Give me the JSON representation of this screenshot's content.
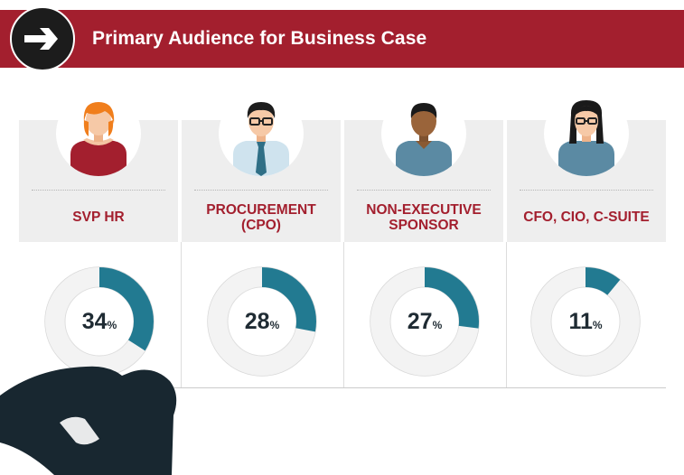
{
  "header": {
    "title": "Primary Audience for Business Case",
    "icon": "arrow-right-icon"
  },
  "columns": [
    {
      "label": "SVP HR",
      "avatar": "woman-red-hair-icon"
    },
    {
      "label": "PROCUREMENT\n(CPO)",
      "avatar": "man-glasses-tie-icon"
    },
    {
      "label": "NON-EXECUTIVE\nSPONSOR",
      "avatar": "man-dark-skin-icon"
    },
    {
      "label": "CFO, CIO, C-SUITE",
      "avatar": "woman-glasses-icon"
    }
  ],
  "colors": {
    "banner": "#a31f2e",
    "accent": "#227a91",
    "ring": "#f3f3f3",
    "label": "#a31f2e"
  },
  "chart_data": {
    "type": "donut",
    "categories": [
      "SVP HR",
      "PROCUREMENT (CPO)",
      "NON-EXECUTIVE SPONSOR",
      "CFO, CIO, C-SUITE"
    ],
    "values": [
      34,
      28,
      27,
      11
    ],
    "value_labels": [
      "34",
      "28",
      "27",
      "11"
    ],
    "unit": "%",
    "max": 100
  },
  "decoration": {
    "bottom_left": "binoculars-icon"
  }
}
